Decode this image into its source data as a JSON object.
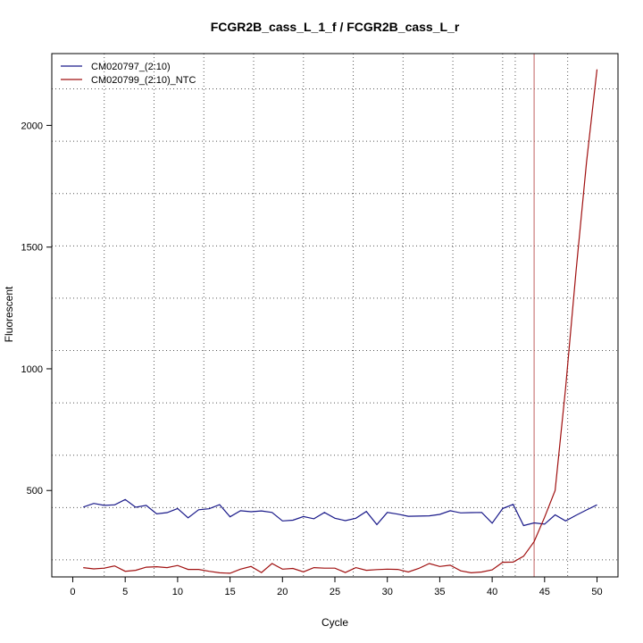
{
  "chart_data": {
    "type": "line",
    "title": "FCGR2B_cass_L_1_f / FCGR2B_cass_L_r",
    "xlabel": "Cycle",
    "ylabel": "Fluorescent",
    "xlim": [
      -2,
      52
    ],
    "ylim": [
      145,
      2295
    ],
    "x_ticks": [
      0,
      5,
      10,
      15,
      20,
      25,
      30,
      35,
      40,
      45,
      50
    ],
    "y_ticks": [
      500,
      1000,
      1500,
      2000
    ],
    "x_grid": [
      3,
      7.75,
      12.5,
      17.25,
      22,
      26.75,
      31.5,
      36.25,
      41,
      42.2,
      47.2
    ],
    "y_grid": [
      215,
      430,
      645,
      860,
      1075,
      1290,
      1505,
      1720,
      1935,
      2150
    ],
    "grid": true,
    "legend_position": "top-left",
    "threshold_cycle": 44,
    "threshold_color": "#c06060",
    "x": [
      1,
      2,
      3,
      4,
      5,
      6,
      7,
      8,
      9,
      10,
      11,
      12,
      13,
      14,
      15,
      16,
      17,
      18,
      19,
      20,
      21,
      22,
      23,
      24,
      25,
      26,
      27,
      28,
      29,
      30,
      31,
      32,
      33,
      34,
      35,
      36,
      37,
      38,
      39,
      40,
      41,
      42,
      43,
      44,
      45,
      46,
      47,
      48,
      49,
      50
    ],
    "series": [
      {
        "name": "CM020797_(2:10)",
        "color": "#1a1a8a",
        "values": [
          432,
          447,
          439,
          441,
          463,
          431,
          439,
          404,
          409,
          426,
          388,
          421,
          425,
          442,
          392,
          417,
          413,
          416,
          410,
          375,
          378,
          393,
          384,
          410,
          386,
          376,
          386,
          414,
          360,
          410,
          403,
          394,
          395,
          396,
          402,
          417,
          408,
          409,
          410,
          366,
          426,
          443,
          356,
          367,
          362,
          400,
          375,
          398,
          420,
          441
        ]
      },
      {
        "name": "CM020799_(2:10)_NTC",
        "color": "#a01010",
        "values": [
          183,
          178,
          181,
          190,
          168,
          172,
          185,
          187,
          183,
          192,
          176,
          176,
          168,
          162,
          160,
          177,
          188,
          163,
          200,
          177,
          180,
          166,
          183,
          181,
          181,
          163,
          183,
          172,
          175,
          177,
          176,
          165,
          180,
          200,
          188,
          193,
          170,
          162,
          165,
          174,
          205,
          206,
          230,
          290,
          390,
          500,
          920,
          1400,
          1850,
          2230
        ]
      }
    ]
  }
}
